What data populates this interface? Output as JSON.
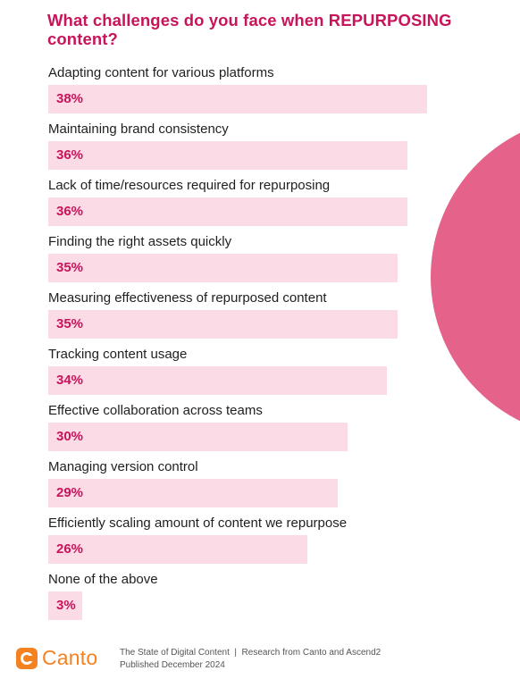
{
  "title": "What challenges do you face when REPURPOSING content?",
  "colors": {
    "accent": "#c8145a",
    "bar_fill": "#fadbe6",
    "label_text": "#1f1f1f",
    "decor_circle": "#e5638a",
    "logo": "#f58220"
  },
  "chart_data": {
    "type": "bar",
    "orientation": "horizontal",
    "title": "What challenges do you face when REPURPOSING content?",
    "categories": [
      "Adapting content for various platforms",
      "Maintaining brand consistency",
      "Lack of time/resources required for repurposing",
      "Finding the right assets quickly",
      "Measuring effectiveness of repurposed content",
      "Tracking content usage",
      "Effective collaboration across teams",
      "Managing version control",
      "Efficiently scaling amount of content we repurpose",
      "None of the above"
    ],
    "values": [
      38,
      36,
      36,
      35,
      35,
      34,
      30,
      29,
      26,
      3
    ],
    "value_labels": [
      "38%",
      "36%",
      "36%",
      "35%",
      "35%",
      "34%",
      "30%",
      "29%",
      "26%",
      "3%"
    ],
    "unit": "%"
  },
  "footer": {
    "logo_text": "Canto",
    "line1": "The State of Digital Content  |  Research from Canto and Ascend2",
    "line2": "Published December 2024"
  }
}
